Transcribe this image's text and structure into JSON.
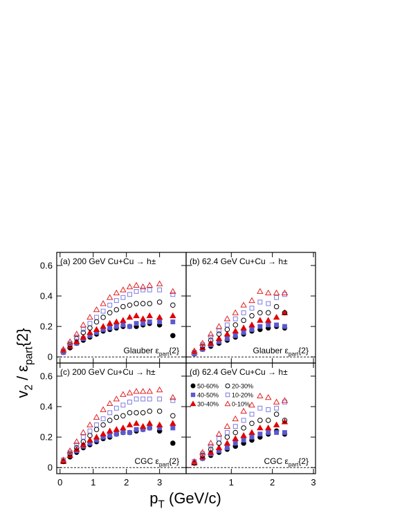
{
  "ylabel": [
    {
      "text": "v"
    },
    {
      "text": "2",
      "baseline": "sub"
    },
    {
      "text": " / ε"
    },
    {
      "text": "part",
      "baseline": "sub"
    },
    {
      "text": "{2}"
    }
  ],
  "xlabel": [
    {
      "text": "p"
    },
    {
      "text": "T",
      "baseline": "sub"
    },
    {
      "text": " (GeV/c)"
    }
  ],
  "legend": {
    "panel": 3,
    "entries": [
      {
        "name": "50-60%",
        "color": "#000000",
        "marker": "circle",
        "filled": true
      },
      {
        "name": "40-50%",
        "color": "#5a5ad0",
        "marker": "square",
        "filled": true
      },
      {
        "name": "30-40%",
        "color": "#e00000",
        "marker": "triangle",
        "filled": true
      },
      {
        "name": "20-30%",
        "color": "#000000",
        "marker": "circle",
        "filled": false
      },
      {
        "name": "10-20%",
        "color": "#7a7ae0",
        "marker": "square",
        "filled": false
      },
      {
        "name": "0-10%",
        "color": "#e02020",
        "marker": "triangle",
        "filled": false
      }
    ]
  },
  "chart_data": [
    {
      "type": "scatter",
      "title": "(a) 200 GeV Cu+Cu → h±",
      "annotation": [
        {
          "text": "Glauber ε"
        },
        {
          "text": "part",
          "baseline": "sub"
        },
        {
          "text": "{2}"
        }
      ],
      "xlim": [
        -0.1,
        3.8
      ],
      "ylim": [
        -0.04,
        0.686
      ],
      "xticks": [
        0,
        1,
        2,
        3
      ],
      "yticks": [
        0,
        0.2,
        0.4,
        0.6
      ],
      "x": [
        0.1,
        0.3,
        0.5,
        0.7,
        0.9,
        1.1,
        1.3,
        1.5,
        1.7,
        1.9,
        2.1,
        2.3,
        2.5,
        2.7,
        3.0,
        3.4
      ],
      "series": [
        {
          "values": [
            0.03,
            0.06,
            0.09,
            0.11,
            0.13,
            0.15,
            0.17,
            0.18,
            0.19,
            0.2,
            0.2,
            0.2,
            0.21,
            0.22,
            0.21,
            0.14
          ]
        },
        {
          "values": [
            0.03,
            0.07,
            0.09,
            0.12,
            0.14,
            0.16,
            0.18,
            0.19,
            0.2,
            0.21,
            0.2,
            0.22,
            0.22,
            0.23,
            0.23,
            0.23
          ]
        },
        {
          "values": [
            0.04,
            0.07,
            0.1,
            0.13,
            0.16,
            0.18,
            0.2,
            0.22,
            0.23,
            0.24,
            0.26,
            0.27,
            0.25,
            0.27,
            0.26,
            0.27
          ]
        },
        {
          "values": [
            0.04,
            0.08,
            0.12,
            0.16,
            0.19,
            0.23,
            0.26,
            0.29,
            0.31,
            0.33,
            0.34,
            0.35,
            0.35,
            0.35,
            0.36,
            0.34
          ]
        },
        {
          "values": [
            0.04,
            0.09,
            0.13,
            0.18,
            0.22,
            0.26,
            0.3,
            0.34,
            0.37,
            0.39,
            0.41,
            0.43,
            0.44,
            0.44,
            0.44,
            0.41
          ]
        },
        {
          "values": [
            0.05,
            0.1,
            0.15,
            0.21,
            0.26,
            0.31,
            0.35,
            0.39,
            0.42,
            0.44,
            0.46,
            0.47,
            0.46,
            0.47,
            0.48,
            0.43
          ]
        }
      ]
    },
    {
      "type": "scatter",
      "title": "(b) 62.4 GeV Cu+Cu → h±",
      "annotation": [
        {
          "text": "Glauber ε"
        },
        {
          "text": "part",
          "baseline": "sub"
        },
        {
          "text": "{2}"
        }
      ],
      "xlim": [
        -0.1,
        3.05
      ],
      "ylim": [
        -0.04,
        0.686
      ],
      "xticks": [
        1,
        2,
        3
      ],
      "yticks": [
        0,
        0.2,
        0.4,
        0.6
      ],
      "x": [
        0.1,
        0.3,
        0.5,
        0.7,
        0.9,
        1.1,
        1.3,
        1.5,
        1.7,
        1.9,
        2.1,
        2.3
      ],
      "series": [
        {
          "values": [
            0.02,
            0.05,
            0.07,
            0.09,
            0.11,
            0.13,
            0.15,
            0.17,
            0.18,
            0.19,
            0.2,
            0.19
          ]
        },
        {
          "values": [
            0.02,
            0.05,
            0.08,
            0.1,
            0.12,
            0.14,
            0.16,
            0.18,
            0.2,
            0.21,
            0.21,
            0.2
          ]
        },
        {
          "values": [
            0.03,
            0.06,
            0.09,
            0.12,
            0.15,
            0.17,
            0.19,
            0.21,
            0.24,
            0.24,
            0.26,
            0.29
          ]
        },
        {
          "values": [
            0.03,
            0.07,
            0.11,
            0.15,
            0.18,
            0.21,
            0.24,
            0.27,
            0.29,
            0.29,
            0.33,
            0.29
          ]
        },
        {
          "values": [
            0.03,
            0.08,
            0.13,
            0.17,
            0.21,
            0.25,
            0.29,
            0.32,
            0.36,
            0.35,
            0.39,
            0.41
          ]
        },
        {
          "values": [
            0.04,
            0.09,
            0.15,
            0.2,
            0.25,
            0.29,
            0.34,
            0.37,
            0.43,
            0.42,
            0.42,
            0.42
          ]
        }
      ]
    },
    {
      "type": "scatter",
      "title": "(c) 200 GeV Cu+Cu → h±",
      "annotation": [
        {
          "text": "CGC ε"
        },
        {
          "text": "part",
          "baseline": "sub"
        },
        {
          "text": "{2}"
        }
      ],
      "xlim": [
        -0.1,
        3.8
      ],
      "ylim": [
        -0.04,
        0.686
      ],
      "xticks": [
        0,
        1,
        2,
        3
      ],
      "yticks": [
        0,
        0.2,
        0.4,
        0.6
      ],
      "x": [
        0.1,
        0.3,
        0.5,
        0.7,
        0.9,
        1.1,
        1.3,
        1.5,
        1.7,
        1.9,
        2.1,
        2.3,
        2.5,
        2.7,
        3.0,
        3.4
      ],
      "series": [
        {
          "values": [
            0.04,
            0.07,
            0.1,
            0.13,
            0.15,
            0.17,
            0.19,
            0.2,
            0.22,
            0.23,
            0.23,
            0.24,
            0.25,
            0.26,
            0.24,
            0.16
          ]
        },
        {
          "values": [
            0.04,
            0.08,
            0.11,
            0.14,
            0.16,
            0.18,
            0.2,
            0.21,
            0.22,
            0.23,
            0.23,
            0.25,
            0.25,
            0.26,
            0.26,
            0.26
          ]
        },
        {
          "values": [
            0.04,
            0.08,
            0.12,
            0.15,
            0.18,
            0.2,
            0.22,
            0.24,
            0.25,
            0.26,
            0.28,
            0.29,
            0.27,
            0.29,
            0.28,
            0.29
          ]
        },
        {
          "values": [
            0.04,
            0.09,
            0.13,
            0.17,
            0.21,
            0.25,
            0.28,
            0.31,
            0.33,
            0.34,
            0.36,
            0.36,
            0.36,
            0.37,
            0.37,
            0.34
          ]
        },
        {
          "values": [
            0.05,
            0.1,
            0.15,
            0.2,
            0.24,
            0.28,
            0.32,
            0.36,
            0.39,
            0.41,
            0.43,
            0.45,
            0.45,
            0.45,
            0.45,
            0.44
          ]
        },
        {
          "values": [
            0.05,
            0.11,
            0.17,
            0.23,
            0.28,
            0.33,
            0.38,
            0.42,
            0.45,
            0.48,
            0.49,
            0.5,
            0.5,
            0.5,
            0.51,
            0.46
          ]
        }
      ]
    },
    {
      "type": "scatter",
      "title": "(d) 62.4 GeV Cu+Cu → h±",
      "annotation": [
        {
          "text": "CGC ε"
        },
        {
          "text": "part",
          "baseline": "sub"
        },
        {
          "text": "{2}"
        }
      ],
      "xlim": [
        -0.1,
        3.05
      ],
      "ylim": [
        -0.04,
        0.686
      ],
      "xticks": [
        1,
        2,
        3
      ],
      "yticks": [
        0,
        0.2,
        0.4,
        0.6
      ],
      "x": [
        0.1,
        0.3,
        0.5,
        0.7,
        0.9,
        1.1,
        1.3,
        1.5,
        1.7,
        1.9,
        2.1,
        2.3
      ],
      "series": [
        {
          "values": [
            0.03,
            0.06,
            0.08,
            0.1,
            0.12,
            0.14,
            0.16,
            0.18,
            0.2,
            0.22,
            0.24,
            0.22
          ]
        },
        {
          "values": [
            0.03,
            0.06,
            0.09,
            0.11,
            0.13,
            0.16,
            0.18,
            0.2,
            0.22,
            0.23,
            0.23,
            0.23
          ]
        },
        {
          "values": [
            0.03,
            0.07,
            0.1,
            0.13,
            0.16,
            0.19,
            0.21,
            0.23,
            0.26,
            0.26,
            0.28,
            0.3
          ]
        },
        {
          "values": [
            0.03,
            0.08,
            0.12,
            0.16,
            0.2,
            0.23,
            0.26,
            0.29,
            0.31,
            0.31,
            0.35,
            0.31
          ]
        },
        {
          "values": [
            0.04,
            0.09,
            0.14,
            0.19,
            0.23,
            0.27,
            0.31,
            0.35,
            0.39,
            0.38,
            0.39,
            0.43
          ]
        },
        {
          "values": [
            0.04,
            0.1,
            0.16,
            0.22,
            0.27,
            0.32,
            0.37,
            0.41,
            0.47,
            0.46,
            0.43,
            0.44
          ]
        }
      ]
    }
  ]
}
